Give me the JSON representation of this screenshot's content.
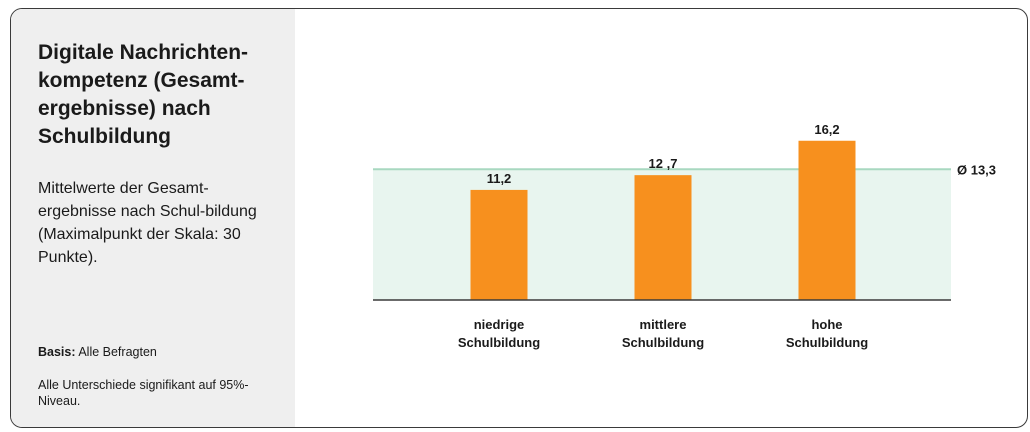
{
  "sidebar": {
    "title": "Digitale Nachrichten-kompetenz (Gesamt-ergebnisse) nach Schulbildung",
    "description": "Mittelwerte der Gesamt-ergebnisse nach Schul-bildung (Maximalpunkt der Skala: 30 Punkte).",
    "basis_label": "Basis:",
    "basis_value": "Alle Befragten",
    "note": "Alle Unterschiede signifikant auf 95%-Niveau."
  },
  "colors": {
    "bar": "#f7901e",
    "average_band": "#e8f5ef",
    "average_line": "#a8d8c0",
    "axis": "#3a3a3a",
    "panel": "#efefef"
  },
  "chart_data": {
    "type": "bar",
    "categories": [
      [
        "niedrige",
        "Schulbildung"
      ],
      [
        "mittlere",
        "Schulbildung"
      ],
      [
        "hohe",
        "Schulbildung"
      ]
    ],
    "values": [
      11.2,
      12.7,
      16.2
    ],
    "value_labels": [
      "11,2",
      "12 ,7",
      "16,2"
    ],
    "average": 13.3,
    "average_label": "Ø 13,3",
    "ylim": [
      0,
      18
    ],
    "grid": false,
    "legend": "none"
  }
}
